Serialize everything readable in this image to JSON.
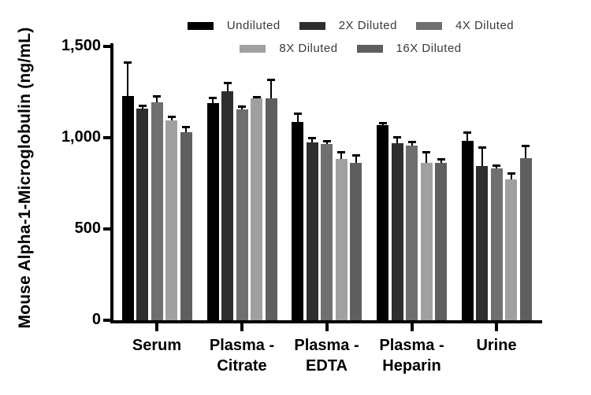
{
  "chart_data": {
    "type": "bar",
    "title": "",
    "xlabel": "",
    "ylabel": "Mouse Alpha-1-Microglobulin (ng/mL)",
    "ylim": [
      0,
      1500
    ],
    "yticks": [
      0,
      500,
      1000,
      1500
    ],
    "ytick_labels": [
      "0",
      "500",
      "1,000",
      "1,500"
    ],
    "grid": false,
    "legend_position": "top",
    "error_bars": "upper",
    "categories": [
      "Serum",
      "Plasma - Citrate",
      "Plasma - EDTA",
      "Plasma - Heparin",
      "Urine"
    ],
    "category_label_lines": [
      [
        "Serum"
      ],
      [
        "Plasma -",
        "Citrate"
      ],
      [
        "Plasma -",
        "EDTA"
      ],
      [
        "Plasma -",
        "Heparin"
      ],
      [
        "Urine"
      ]
    ],
    "series": [
      {
        "name": "Undiluted",
        "color": "#000000",
        "values": [
          1230,
          1190,
          1085,
          1068,
          983
        ],
        "errors": [
          185,
          30,
          50,
          14,
          48
        ]
      },
      {
        "name": "2X Diluted",
        "color": "#2e2e2e",
        "values": [
          1160,
          1255,
          972,
          968,
          843
        ],
        "errors": [
          15,
          48,
          30,
          38,
          105
        ]
      },
      {
        "name": "4X Diluted",
        "color": "#6f6f6f",
        "values": [
          1195,
          1155,
          966,
          958,
          830
        ],
        "errors": [
          35,
          18,
          15,
          20,
          18
        ]
      },
      {
        "name": "8X Diluted",
        "color": "#a0a0a0",
        "values": [
          1095,
          1215,
          883,
          862,
          770
        ],
        "errors": [
          20,
          10,
          40,
          60,
          36
        ]
      },
      {
        "name": "16X Diluted",
        "color": "#5f5f5f",
        "values": [
          1030,
          1215,
          862,
          864,
          890
        ],
        "errors": [
          30,
          105,
          45,
          20,
          68
        ]
      }
    ]
  }
}
